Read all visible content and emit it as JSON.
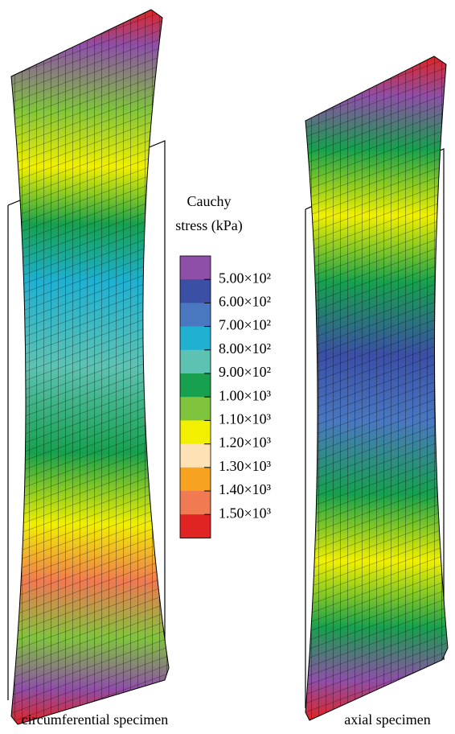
{
  "legend": {
    "title_lines": [
      "Cauchy",
      "stress (kPa)"
    ],
    "colors": [
      "#8e4fa8",
      "#3b4fa5",
      "#4a78c0",
      "#1fb0d2",
      "#5ec2b2",
      "#17a04e",
      "#80c43e",
      "#f2f000",
      "#fce2b4",
      "#f8a222",
      "#f07a52",
      "#e02424"
    ],
    "labels": [
      "5.00×10²",
      "6.00×10²",
      "7.00×10²",
      "8.00×10²",
      "9.00×10²",
      "1.00×10³",
      "1.10×10³",
      "1.20×10³",
      "1.30×10³",
      "1.40×10³",
      "1.50×10³"
    ]
  },
  "captions": [
    "circumferential specimen",
    "axial specimen"
  ]
}
